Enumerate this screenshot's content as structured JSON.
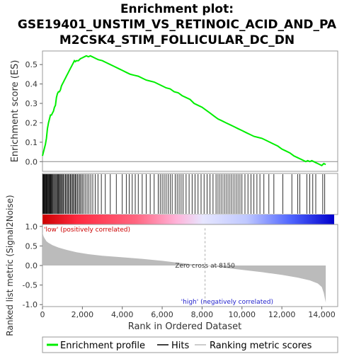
{
  "title_lines": [
    "Enrichment plot:",
    "GSE19401_UNSTIM_VS_RETINOIC_ACID_AND_PA",
    "M2CSK4_STIM_FOLLICULAR_DC_DN"
  ],
  "chart_data": {
    "type": "line",
    "x_axis": {
      "label": "Rank in Ordered Dataset",
      "range": [
        0,
        14800
      ],
      "ticks": [
        0,
        2000,
        4000,
        6000,
        8000,
        10000,
        12000,
        14000
      ],
      "tick_labels": [
        "0",
        "2,000",
        "4,000",
        "6,000",
        "8,000",
        "10,000",
        "12,000",
        "14,000"
      ]
    },
    "es_panel": {
      "ylabel": "Enrichment score (ES)",
      "ylim": [
        -0.05,
        0.57
      ],
      "ticks": [
        0.0,
        0.1,
        0.2,
        0.3,
        0.4,
        0.5
      ],
      "tick_labels": [
        "0.0",
        "0.1",
        "0.2",
        "0.3",
        "0.4",
        "0.5"
      ],
      "series": [
        {
          "name": "Enrichment profile",
          "color": "#00ee00",
          "x": [
            0,
            50,
            100,
            150,
            200,
            250,
            300,
            350,
            400,
            450,
            500,
            550,
            600,
            650,
            700,
            750,
            800,
            850,
            900,
            950,
            1000,
            1050,
            1100,
            1150,
            1200,
            1250,
            1300,
            1350,
            1400,
            1450,
            1500,
            1550,
            1600,
            1650,
            1700,
            1800,
            1900,
            2000,
            2100,
            2200,
            2300,
            2400,
            2500,
            2600,
            2700,
            2800,
            3000,
            3200,
            3400,
            3600,
            3800,
            4000,
            4200,
            4400,
            4600,
            4800,
            5000,
            5200,
            5400,
            5600,
            5800,
            6000,
            6200,
            6400,
            6600,
            6800,
            7000,
            7200,
            7400,
            7600,
            7800,
            8000,
            8200,
            8400,
            8600,
            8800,
            9000,
            9200,
            9400,
            9600,
            9800,
            10000,
            10200,
            10400,
            10600,
            10800,
            11000,
            11200,
            11400,
            11600,
            11800,
            12000,
            12200,
            12400,
            12600,
            12800,
            13000,
            13200,
            13300,
            13400,
            13500,
            13600,
            13700,
            13800,
            13900,
            14000,
            14100,
            14200
          ],
          "y": [
            0.03,
            0.05,
            0.07,
            0.09,
            0.12,
            0.17,
            0.2,
            0.22,
            0.24,
            0.24,
            0.25,
            0.26,
            0.28,
            0.29,
            0.33,
            0.35,
            0.36,
            0.36,
            0.37,
            0.39,
            0.4,
            0.41,
            0.42,
            0.43,
            0.44,
            0.45,
            0.46,
            0.47,
            0.48,
            0.49,
            0.5,
            0.51,
            0.52,
            0.515,
            0.52,
            0.52,
            0.53,
            0.535,
            0.54,
            0.545,
            0.54,
            0.545,
            0.54,
            0.535,
            0.53,
            0.525,
            0.52,
            0.51,
            0.5,
            0.49,
            0.48,
            0.47,
            0.46,
            0.45,
            0.445,
            0.44,
            0.43,
            0.42,
            0.415,
            0.41,
            0.4,
            0.39,
            0.38,
            0.375,
            0.36,
            0.355,
            0.34,
            0.33,
            0.32,
            0.3,
            0.29,
            0.28,
            0.265,
            0.25,
            0.235,
            0.22,
            0.21,
            0.2,
            0.19,
            0.18,
            0.17,
            0.16,
            0.15,
            0.14,
            0.13,
            0.125,
            0.12,
            0.11,
            0.1,
            0.09,
            0.08,
            0.065,
            0.055,
            0.045,
            0.03,
            0.02,
            0.01,
            0.0,
            0.005,
            0.0,
            0.005,
            0.0,
            -0.005,
            -0.01,
            -0.015,
            -0.02,
            -0.01,
            -0.015
          ]
        }
      ]
    },
    "hits": [
      20,
      45,
      70,
      95,
      120,
      150,
      180,
      210,
      240,
      270,
      300,
      330,
      360,
      390,
      420,
      450,
      480,
      520,
      560,
      600,
      640,
      680,
      720,
      760,
      800,
      840,
      880,
      920,
      960,
      1000,
      1050,
      1100,
      1150,
      1200,
      1250,
      1300,
      1350,
      1400,
      1450,
      1500,
      1550,
      1600,
      1650,
      1700,
      1760,
      1820,
      1880,
      1940,
      2000,
      2080,
      2160,
      2240,
      2330,
      2420,
      2520,
      2640,
      2780,
      2950,
      3150,
      3400,
      3700,
      4000,
      4200,
      4350,
      4500,
      4650,
      4800,
      5000,
      5200,
      5400,
      5600,
      5800,
      5900,
      6000,
      6100,
      6200,
      6300,
      6400,
      6500,
      6650,
      6750,
      6850,
      6950,
      7050,
      7200,
      7350,
      7500,
      7650,
      7800,
      7950,
      8100,
      8250,
      8400,
      8550,
      8700,
      8800,
      8900,
      9000,
      9100,
      9200,
      9300,
      9400,
      9500,
      9600,
      9700,
      9800,
      9900,
      10000,
      10150,
      10300,
      10450,
      10600,
      10750,
      10900,
      11100,
      11350,
      11600,
      12050,
      12500,
      12800,
      12900,
      13250,
      13400,
      13550,
      13700,
      14050,
      14150
    ],
    "metric_panel": {
      "ylabel": "Ranked list metric (Signal2Noise)",
      "ylim": [
        -1.05,
        1.05
      ],
      "ticks": [
        -1.0,
        -0.5,
        0.0,
        0.5,
        1.0
      ],
      "tick_labels": [
        "-1.0",
        "-0.5",
        "0.0",
        "0.5",
        "1.0"
      ],
      "x": [
        0,
        50,
        100,
        200,
        300,
        500,
        800,
        1200,
        1700,
        2300,
        3000,
        4000,
        5000,
        6000,
        6800,
        7500,
        8150,
        9000,
        10000,
        11000,
        12000,
        12800,
        13400,
        13800,
        14000,
        14100,
        14200
      ],
      "y": [
        0.85,
        0.75,
        0.7,
        0.62,
        0.58,
        0.52,
        0.46,
        0.4,
        0.34,
        0.29,
        0.25,
        0.21,
        0.17,
        0.12,
        0.07,
        0.03,
        0.0,
        -0.05,
        -0.11,
        -0.17,
        -0.24,
        -0.31,
        -0.38,
        -0.46,
        -0.55,
        -0.7,
        -0.95
      ],
      "zero_cross": 8150,
      "annotations": {
        "low": "'low' (positively correlated)",
        "high": "'high' (negatively correlated)",
        "zero_cross": "Zero cross at 8150"
      }
    },
    "legend": [
      {
        "label": "Enrichment profile",
        "color": "#00ee00"
      },
      {
        "label": "Hits",
        "color": "#000000"
      },
      {
        "label": "Ranking metric scores",
        "color": "#bbbbbb"
      }
    ]
  }
}
